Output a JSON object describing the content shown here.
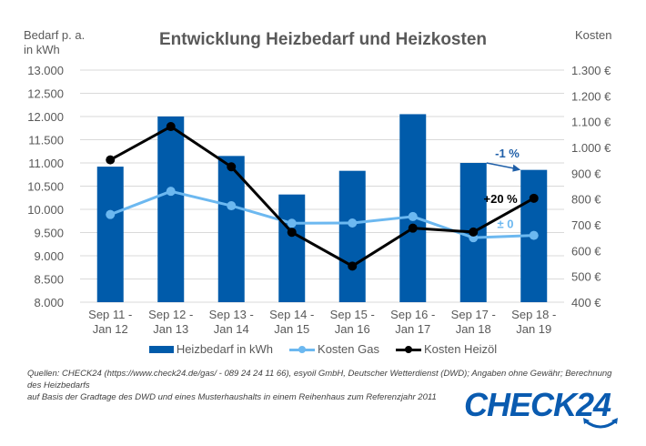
{
  "chart_data": {
    "type": "bar",
    "title": "Entwicklung Heizbedarf und Heizkosten",
    "xlabel": "",
    "ylabel": "Bedarf p. a. in kWh",
    "ylabel_line1": "Bedarf p. a.",
    "ylabel_line2": "in kWh",
    "y2label": "Kosten",
    "ylim": [
      8000,
      13000
    ],
    "y2lim": [
      400,
      1300
    ],
    "grid": true,
    "legend_position": "bottom",
    "categories": [
      [
        "Sep 11 -",
        "Jan 12"
      ],
      [
        "Sep 12 -",
        "Jan 13"
      ],
      [
        "Sep 13 -",
        "Jan 14"
      ],
      [
        "Sep 14 -",
        "Jan 15"
      ],
      [
        "Sep 15 -",
        "Jan 16"
      ],
      [
        "Sep 16 -",
        "Jan 17"
      ],
      [
        "Sep 17 -",
        "Jan 18"
      ],
      [
        "Sep 18 -",
        "Jan 19"
      ]
    ],
    "y_ticks": [
      "13.000",
      "12.500",
      "12.000",
      "11.500",
      "11.000",
      "10.500",
      "10.000",
      "9.500",
      "9.000",
      "8.500",
      "8.000"
    ],
    "y2_ticks": [
      "1.300 €",
      "1.200 €",
      "1.100 €",
      "1.000 €",
      "900 €",
      "800 €",
      "700 €",
      "600 €",
      "500 €",
      "400 €"
    ],
    "series": [
      {
        "name": "Heizbedarf in kWh",
        "type": "bar",
        "axis": "left",
        "color": "#005BAA",
        "values": [
          10920,
          12000,
          11150,
          10320,
          10830,
          12050,
          11000,
          10850
        ]
      },
      {
        "name": "Kosten Gas",
        "type": "line",
        "axis": "right",
        "color": "#6CB8F0",
        "values": [
          740,
          830,
          774,
          706,
          707,
          732,
          650,
          659
        ]
      },
      {
        "name": "Kosten Heizöl",
        "type": "line",
        "axis": "right",
        "color": "#000000",
        "values": [
          952,
          1081,
          925,
          671,
          540,
          687,
          672,
          803
        ]
      }
    ],
    "annotations": [
      {
        "text": "-1 %",
        "color": "#1F5FA8",
        "refers_to": "Heizbedarf in kWh"
      },
      {
        "text": "+20 %",
        "color": "#000000",
        "refers_to": "Kosten Heizöl"
      },
      {
        "text": "± 0",
        "color": "#6CB8F0",
        "refers_to": "Kosten Gas"
      }
    ]
  },
  "legend": {
    "items": [
      "Heizbedarf in kWh",
      "Kosten Gas",
      "Kosten Heizöl"
    ]
  },
  "source": {
    "line1": "Quellen: CHECK24 (https://www.check24.de/gas/ - 089 24 24 11 66), esyoil GmbH, Deutscher Wetterdienst (DWD); Angaben ohne Gewähr; Berechnung des Heizbedarfs",
    "line2": "auf Basis der Gradtage des DWD und eines Musterhaushalts in einem Reihenhaus zum Referenzjahr 2011"
  },
  "logo": {
    "text": "CHECK24",
    "color": "#0A5BB0"
  }
}
